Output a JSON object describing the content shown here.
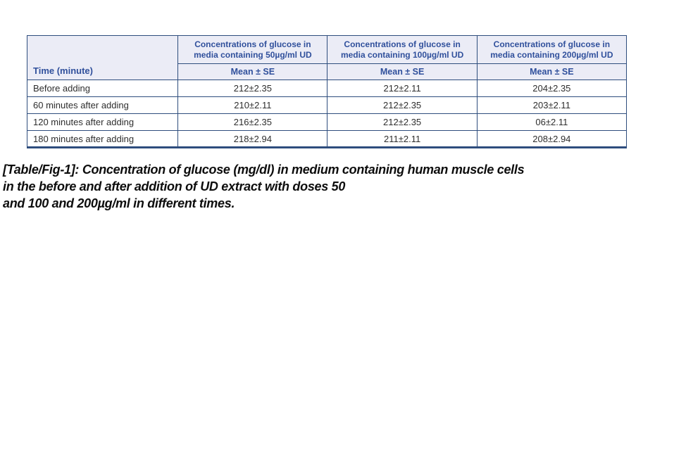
{
  "colors": {
    "table_border": "#2e4d7d",
    "header_background": "#ebecf6",
    "header_text": "#30509c",
    "body_text": "#2e2e2e",
    "caption_text": "#0d0d0d",
    "page_background": "#ffffff"
  },
  "table": {
    "corner_header": "Time (minute)",
    "group_headers": [
      "Concentrations of glucose in media containing 50µg/ml UD",
      "Concentrations of glucose in media containing 100µg/ml UD",
      "Concentrations of glucose in media containing 200µg/ml UD"
    ],
    "sub_headers": [
      "Mean ± SE",
      "Mean ± SE",
      "Mean ± SE"
    ],
    "rows": [
      {
        "time": "Before adding",
        "values": [
          "212±2.35",
          "212±2.11",
          "204±2.35"
        ]
      },
      {
        "time": "60 minutes after adding",
        "values": [
          "210±2.11",
          "212±2.35",
          "203±2.11"
        ]
      },
      {
        "time": "120 minutes after adding",
        "values": [
          "216±2.35",
          "212±2.35",
          "06±2.11"
        ]
      },
      {
        "time": "180 minutes after adding",
        "values": [
          "218±2.94",
          "211±2.11",
          "208±2.94"
        ]
      }
    ]
  },
  "caption": {
    "line1": "[Table/Fig-1]: Concentration of glucose (mg/dl) in medium containing human muscle cells",
    "line2": "in the before and after addition of UD extract with doses 50",
    "line3": "and 100 and 200µg/ml in different times."
  },
  "chart_data": {
    "type": "table",
    "title": "[Table/Fig-1]: Concentration of glucose (mg/dl) in medium containing human muscle cells in the before and after addition of UD extract with doses 50 and 100 and 200µg/ml in different times.",
    "categories": [
      "Before adding",
      "60 minutes after adding",
      "120 minutes after adding",
      "180 minutes after adding"
    ],
    "series": [
      {
        "name": "Concentrations of glucose in media containing 50µg/ml UD (Mean ± SE)",
        "values": [
          "212±2.35",
          "210±2.11",
          "216±2.35",
          "218±2.94"
        ]
      },
      {
        "name": "Concentrations of glucose in media containing 100µg/ml UD (Mean ± SE)",
        "values": [
          "212±2.11",
          "212±2.35",
          "212±2.35",
          "211±2.11"
        ]
      },
      {
        "name": "Concentrations of glucose in media containing 200µg/ml UD (Mean ± SE)",
        "values": [
          "204±2.35",
          "203±2.11",
          "06±2.11",
          "208±2.94"
        ]
      }
    ]
  }
}
